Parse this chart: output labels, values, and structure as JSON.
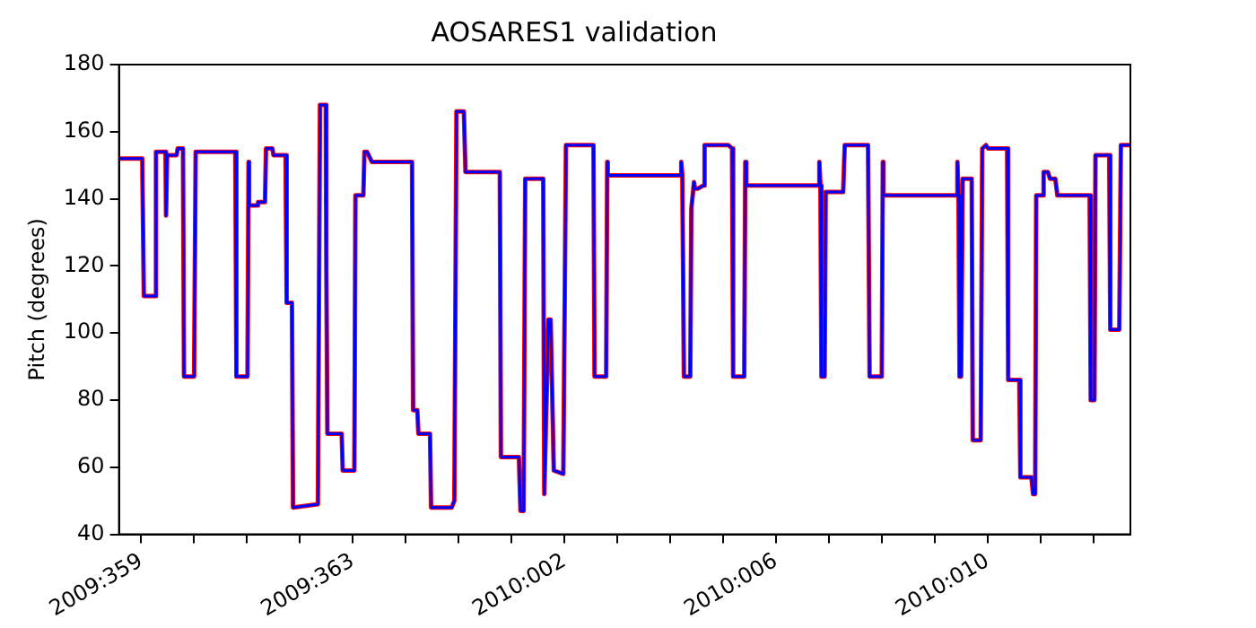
{
  "chart_data": {
    "type": "line",
    "title": "AOSARES1 validation",
    "ylabel": "Pitch (degrees)",
    "x": [
      "2009-12-24T13:55",
      "2009-12-25T00:29",
      "2009-12-25T01:12",
      "2009-12-25T06:00",
      "2009-12-25T06:43",
      "2009-12-25T11:02",
      "2009-12-25T11:17",
      "2009-12-25T11:46",
      "2009-12-25T16:05",
      "2009-12-25T16:34",
      "2009-12-25T18:58",
      "2009-12-25T19:26",
      "2009-12-26T00:00",
      "2009-12-26T00:43",
      "2009-12-26T18:43",
      "2009-12-26T19:12",
      "2009-12-27T00:14",
      "2009-12-27T00:43",
      "2009-12-27T00:58",
      "2009-12-27T04:34",
      "2009-12-27T05:02",
      "2009-12-27T08:10",
      "2009-12-27T08:38",
      "2009-12-27T11:31",
      "2009-12-27T12:00",
      "2009-12-27T17:31",
      "2009-12-27T18:00",
      "2009-12-27T20:24",
      "2009-12-27T20:53",
      "2009-12-28T08:10",
      "2009-12-28T09:07",
      "2009-12-28T11:46",
      "2009-12-28T12:00",
      "2009-12-28T12:29",
      "2009-12-28T18:58",
      "2009-12-28T19:26",
      "2009-12-29T00:43",
      "2009-12-29T01:12",
      "2009-12-29T04:48",
      "2009-12-29T05:17",
      "2009-12-29T06:29",
      "2009-12-29T08:38",
      "2009-12-30T02:53",
      "2009-12-30T03:22",
      "2009-12-30T05:17",
      "2009-12-30T05:46",
      "2009-12-30T11:02",
      "2009-12-30T11:31",
      "2009-12-30T20:53",
      "2009-12-30T22:05",
      "2009-12-30T23:02",
      "2009-12-31T02:24",
      "2009-12-31T03:07",
      "2009-12-31T18:43",
      "2009-12-31T19:12",
      "2010-01-01T03:22",
      "2010-01-01T04:05",
      "2010-01-01T05:31",
      "2010-01-01T06:14",
      "2010-01-01T14:24",
      "2010-01-01T14:53",
      "2010-01-01T16:48",
      "2010-01-01T17:46",
      "2010-01-01T19:12",
      "2010-01-01T23:31",
      "2010-01-02T00:43",
      "2010-01-02T13:12",
      "2010-01-02T13:41",
      "2010-01-02T18:58",
      "2010-01-02T19:26",
      "2010-01-02T19:41",
      "2010-01-04T04:48",
      "2010-01-04T05:02",
      "2010-01-04T05:31",
      "2010-01-04T06:14",
      "2010-01-04T09:07",
      "2010-01-04T09:36",
      "2010-01-04T10:48",
      "2010-01-04T11:17",
      "2010-01-04T12:29",
      "2010-01-04T15:07",
      "2010-01-04T15:36",
      "2010-01-05T02:24",
      "2010-01-05T04:05",
      "2010-01-05T04:34",
      "2010-01-05T09:36",
      "2010-01-05T10:05",
      "2010-01-05T10:34",
      "2010-01-06T19:12",
      "2010-01-06T19:41",
      "2010-01-06T20:10",
      "2010-01-06T20:38",
      "2010-01-06T22:05",
      "2010-01-06T22:34",
      "2010-01-07T06:29",
      "2010-01-07T07:12",
      "2010-01-07T17:46",
      "2010-01-07T18:29",
      "2010-01-08T00:00",
      "2010-01-08T00:29",
      "2010-01-08T00:43",
      "2010-01-09T10:05",
      "2010-01-09T10:19",
      "2010-01-09T10:48",
      "2010-01-09T11:17",
      "2010-01-09T12:00",
      "2010-01-09T12:43",
      "2010-01-09T16:48",
      "2010-01-09T17:17",
      "2010-01-09T20:53",
      "2010-01-09T21:36",
      "2010-01-09T23:17",
      "2010-01-10T00:14",
      "2010-01-10T08:53",
      "2010-01-10T09:22",
      "2010-01-10T14:24",
      "2010-01-10T14:53",
      "2010-01-10T19:55",
      "2010-01-10T20:38",
      "2010-01-10T21:36",
      "2010-01-10T22:05",
      "2010-01-11T00:58",
      "2010-01-11T01:26",
      "2010-01-11T03:22",
      "2010-01-11T04:19",
      "2010-01-11T06:43",
      "2010-01-11T07:41",
      "2010-01-11T22:19",
      "2010-01-11T22:48",
      "2010-01-12T00:29",
      "2010-01-12T00:58",
      "2010-01-12T07:12",
      "2010-01-12T07:41",
      "2010-01-12T11:46",
      "2010-01-12T12:29",
      "2010-01-12T16:48"
    ],
    "series": [
      {
        "color": "#ff0000",
        "values": [
          152,
          152,
          111,
          111,
          154,
          154,
          135,
          153,
          153,
          155,
          155,
          87,
          87,
          154,
          154,
          87,
          87,
          151,
          138,
          138,
          139,
          139,
          155,
          155,
          153,
          153,
          109,
          109,
          48,
          49,
          168,
          168,
          120,
          70,
          70,
          59,
          59,
          141,
          141,
          154,
          154,
          151,
          151,
          77,
          77,
          70,
          70,
          48,
          48,
          50,
          166,
          166,
          148,
          148,
          63,
          63,
          47,
          47,
          146,
          146,
          52,
          104,
          104,
          59,
          58,
          156,
          156,
          87,
          87,
          151,
          147,
          147,
          151,
          147,
          87,
          87,
          137,
          145,
          143,
          143,
          144,
          156,
          156,
          155,
          87,
          87,
          151,
          144,
          144,
          151,
          144,
          87,
          87,
          142,
          142,
          156,
          156,
          87,
          87,
          151,
          141,
          141,
          151,
          141,
          87,
          87,
          146,
          146,
          68,
          68,
          155,
          156,
          155,
          155,
          86,
          86,
          57,
          57,
          52,
          52,
          141,
          141,
          148,
          148,
          146,
          146,
          141,
          141,
          80,
          80,
          153,
          153,
          101,
          101,
          156,
          156
        ]
      },
      {
        "color": "#0000ff",
        "values": [
          152,
          152,
          111,
          111,
          154,
          154,
          135,
          153,
          153,
          155,
          155,
          87,
          87,
          154,
          154,
          87,
          87,
          151,
          138,
          138,
          139,
          139,
          155,
          155,
          153,
          153,
          109,
          109,
          48,
          49,
          168,
          168,
          120,
          70,
          70,
          59,
          59,
          141,
          141,
          154,
          154,
          151,
          151,
          77,
          77,
          70,
          70,
          48,
          48,
          50,
          166,
          166,
          148,
          148,
          63,
          63,
          47,
          47,
          146,
          146,
          52,
          104,
          104,
          59,
          58,
          156,
          156,
          87,
          87,
          151,
          147,
          147,
          151,
          147,
          87,
          87,
          137,
          145,
          143,
          143,
          144,
          156,
          156,
          155,
          87,
          87,
          151,
          144,
          144,
          151,
          144,
          87,
          87,
          142,
          142,
          156,
          156,
          87,
          87,
          151,
          141,
          141,
          151,
          141,
          87,
          87,
          146,
          146,
          68,
          68,
          155,
          156,
          155,
          155,
          86,
          86,
          57,
          57,
          52,
          52,
          141,
          141,
          148,
          148,
          146,
          146,
          141,
          141,
          80,
          80,
          153,
          153,
          101,
          101,
          156,
          156
        ]
      }
    ],
    "xlim": [
      "2009-12-24T13:55",
      "2010-01-12T16:48"
    ],
    "xticks": [
      {
        "value": "2009-12-25",
        "label": "2009:359"
      },
      {
        "value": "2009-12-26",
        "label": null
      },
      {
        "value": "2009-12-27",
        "label": null
      },
      {
        "value": "2009-12-28",
        "label": null
      },
      {
        "value": "2009-12-29",
        "label": "2009:363"
      },
      {
        "value": "2009-12-30",
        "label": null
      },
      {
        "value": "2009-12-31",
        "label": null
      },
      {
        "value": "2010-01-01",
        "label": null
      },
      {
        "value": "2010-01-02",
        "label": "2010:002"
      },
      {
        "value": "2010-01-03",
        "label": null
      },
      {
        "value": "2010-01-04",
        "label": null
      },
      {
        "value": "2010-01-05",
        "label": null
      },
      {
        "value": "2010-01-06",
        "label": "2010:006"
      },
      {
        "value": "2010-01-07",
        "label": null
      },
      {
        "value": "2010-01-08",
        "label": null
      },
      {
        "value": "2010-01-09",
        "label": null
      },
      {
        "value": "2010-01-10",
        "label": "2010:010"
      },
      {
        "value": "2010-01-11",
        "label": null
      },
      {
        "value": "2010-01-12",
        "label": null
      }
    ],
    "ylim": [
      40,
      180
    ],
    "yticks": [
      40,
      60,
      80,
      100,
      120,
      140,
      160,
      180
    ]
  }
}
